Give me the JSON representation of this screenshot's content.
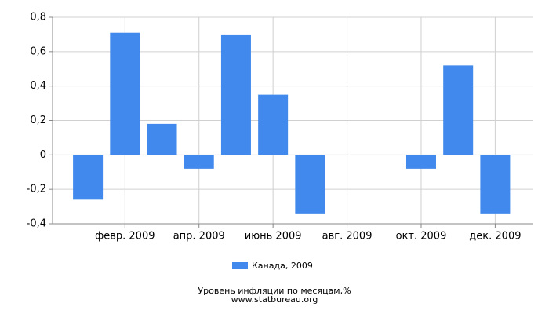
{
  "chart_data": {
    "type": "bar",
    "categories": [
      null,
      "февр. 2009",
      null,
      "апр. 2009",
      null,
      "июнь 2009",
      null,
      "авг. 2009",
      null,
      "окт. 2009",
      null,
      "дек. 2009"
    ],
    "series": [
      {
        "name": "Канада, 2009",
        "color": "#4189ec",
        "values": [
          -0.26,
          0.71,
          0.18,
          -0.08,
          0.7,
          0.35,
          -0.34,
          0,
          0,
          -0.08,
          0.52,
          -0.34
        ]
      }
    ],
    "ylim": [
      -0.4,
      0.8
    ],
    "yticks": [
      {
        "value": -0.4,
        "label": "-0,4"
      },
      {
        "value": -0.2,
        "label": "-0,2"
      },
      0,
      {
        "value": 0.2,
        "label": "0,2"
      },
      {
        "value": 0.4,
        "label": "0,4"
      },
      {
        "value": 0.6,
        "label": "0,6"
      },
      {
        "value": 0.8,
        "label": "0,8"
      }
    ],
    "grid": true,
    "footer": [
      "Уровень инфляции по месяцам,%",
      "www.statbureau.org"
    ]
  }
}
